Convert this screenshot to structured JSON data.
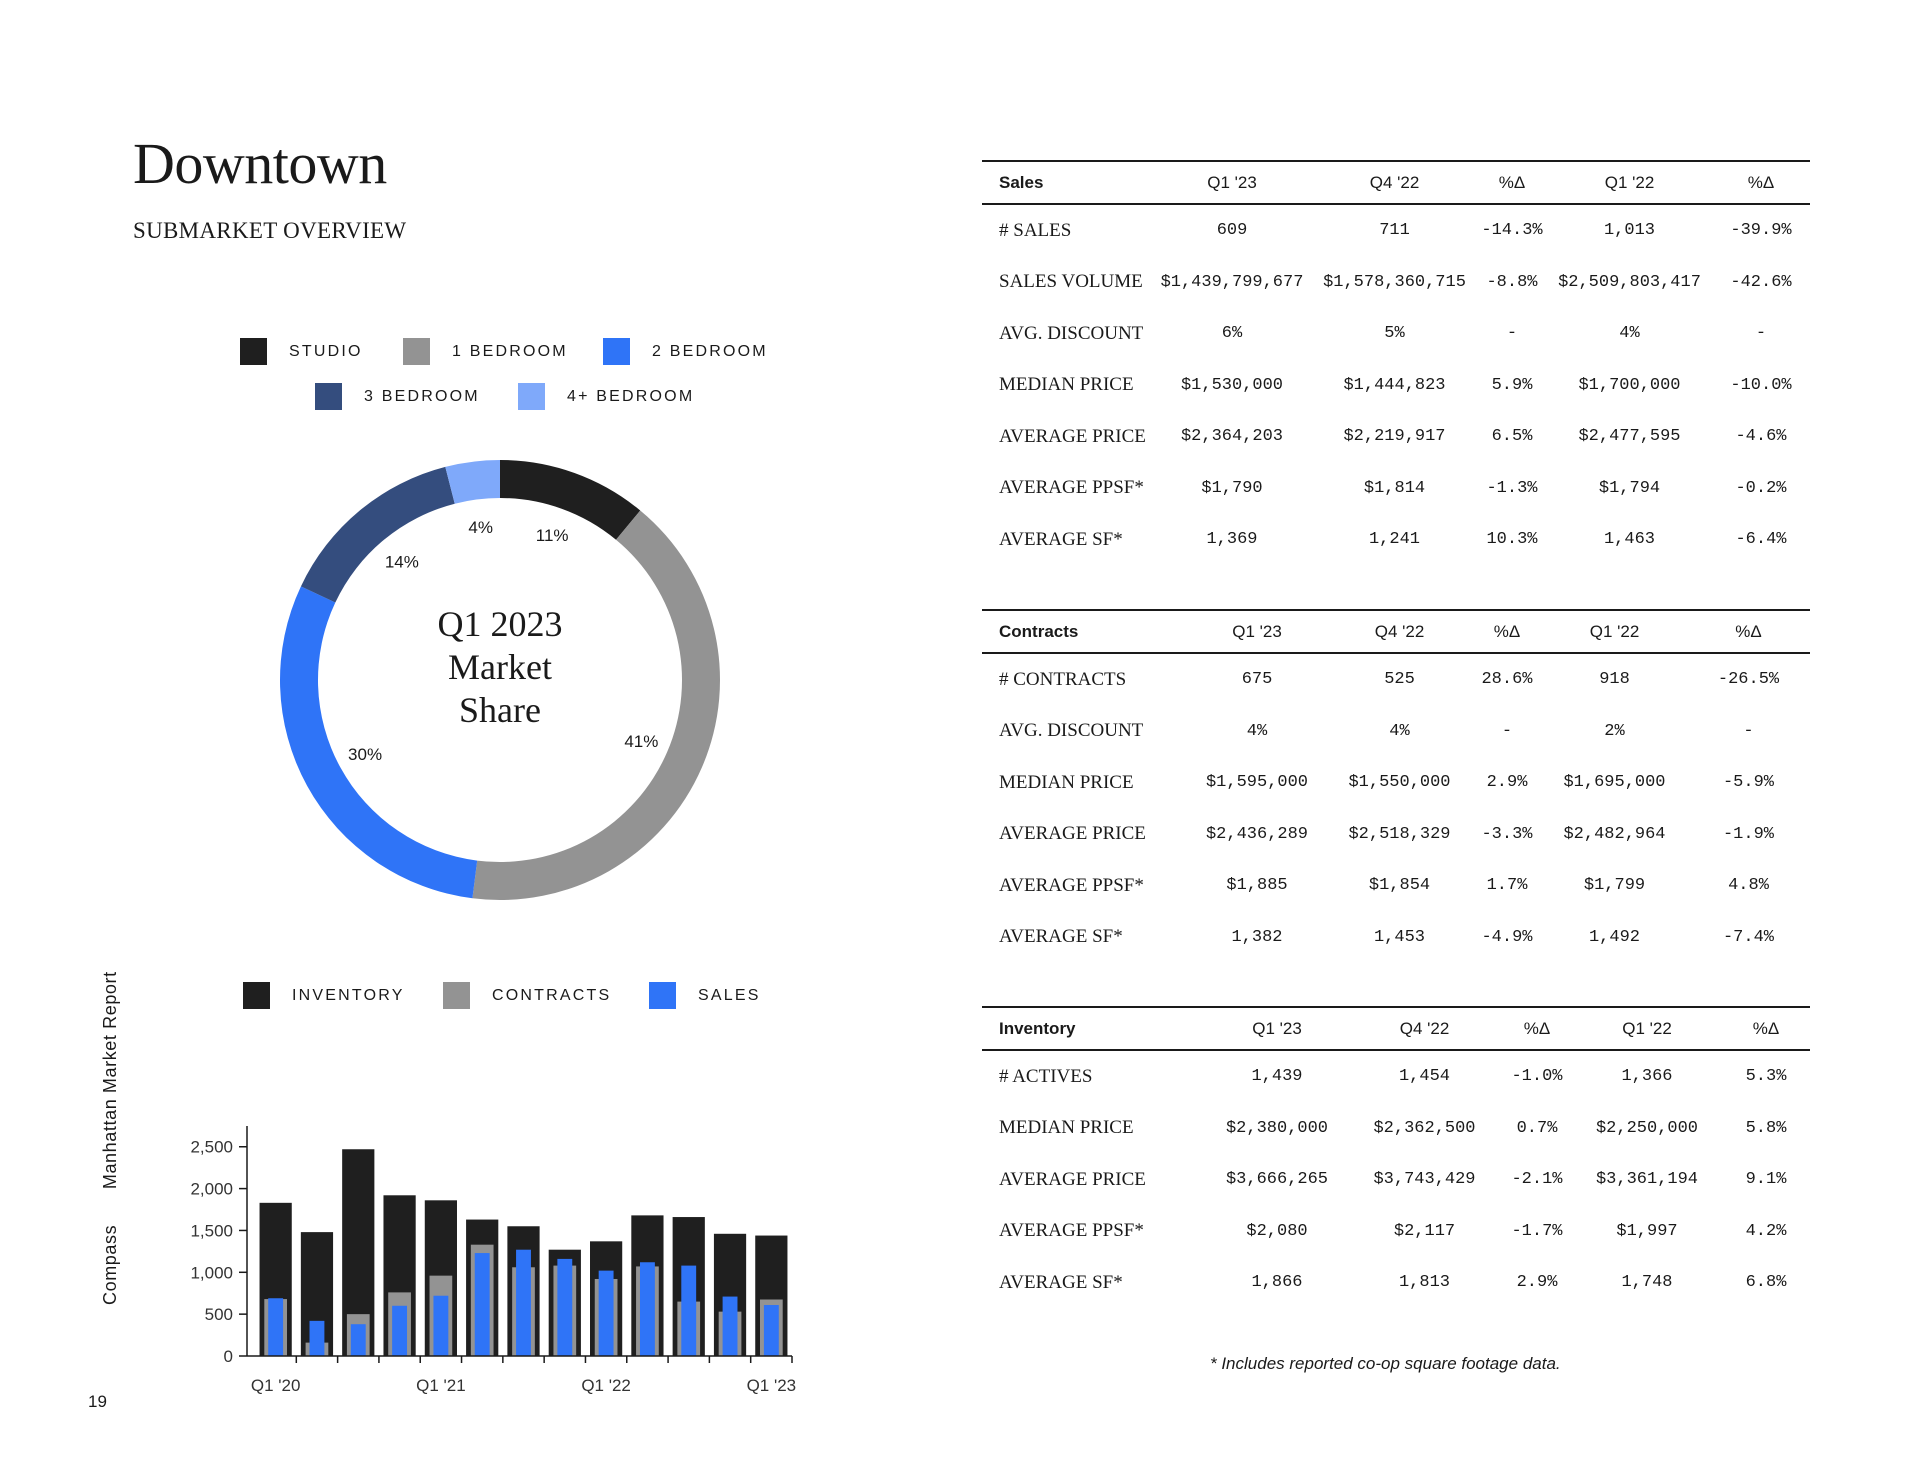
{
  "title": "Downtown",
  "subtitle": "SUBMARKET OVERVIEW",
  "side_text": {
    "brand": "Compass",
    "report": "Manhattan Market Report"
  },
  "page_number": "19",
  "colors": {
    "studio": "#1f1f1f",
    "one_bedroom": "#939393",
    "two_bedroom": "#2f74f7",
    "three_bedroom": "#344d7e",
    "four_plus_bedroom": "#7fa9fa",
    "inventory": "#1f1f1f",
    "contracts": "#939393",
    "sales": "#2f74f7"
  },
  "donut_legend": [
    "STUDIO",
    "1 BEDROOM",
    "2 BEDROOM",
    "3 BEDROOM",
    "4+ BEDROOM"
  ],
  "bar_legend": [
    "INVENTORY",
    "CONTRACTS",
    "SALES"
  ],
  "chart_data": [
    {
      "type": "pie",
      "style": "donut",
      "title_lines": [
        "Q1 2023",
        "Market",
        "Share"
      ],
      "categories": [
        "STUDIO",
        "1 BEDROOM",
        "2 BEDROOM",
        "3 BEDROOM",
        "4+ BEDROOM"
      ],
      "values": [
        11,
        41,
        30,
        14,
        4
      ],
      "labels": [
        "11%",
        "41%",
        "30%",
        "14%",
        "4%"
      ]
    },
    {
      "type": "bar",
      "categories": [
        "Q1 '20",
        "Q2 '20",
        "Q3 '20",
        "Q4 '20",
        "Q1 '21",
        "Q2 '21",
        "Q3 '21",
        "Q4 '21",
        "Q1 '22",
        "Q2 '22",
        "Q3 '22",
        "Q4 '22",
        "Q1 '23"
      ],
      "x_tick_labels": [
        "Q1 '20",
        "Q1 '21",
        "Q1 '22",
        "Q1 '23"
      ],
      "x_tick_indices": [
        0,
        4,
        8,
        12
      ],
      "y_ticks": [
        0,
        500,
        1000,
        1500,
        2000,
        2500
      ],
      "y_tick_labels": [
        "0",
        "500",
        "1,000",
        "1,500",
        "2,000",
        "2,500"
      ],
      "ylim": [
        0,
        2700
      ],
      "series": [
        {
          "name": "INVENTORY",
          "values": [
            1830,
            1480,
            2470,
            1920,
            1860,
            1630,
            1550,
            1270,
            1370,
            1680,
            1660,
            1460,
            1439
          ]
        },
        {
          "name": "CONTRACTS",
          "values": [
            680,
            160,
            500,
            760,
            960,
            1330,
            1060,
            1080,
            920,
            1070,
            650,
            530,
            675
          ]
        },
        {
          "name": "SALES",
          "values": [
            690,
            420,
            380,
            600,
            720,
            1230,
            1270,
            1160,
            1020,
            1120,
            1080,
            710,
            609
          ]
        }
      ]
    }
  ],
  "tables": {
    "sales": {
      "headers": [
        "Sales",
        "Q1 '23",
        "Q4 '22",
        "%Δ",
        "Q1 '22",
        "%Δ"
      ],
      "rows": [
        [
          "# SALES",
          "609",
          "711",
          "-14.3%",
          "1,013",
          "-39.9%"
        ],
        [
          "SALES VOLUME",
          "$1,439,799,677",
          "$1,578,360,715",
          "-8.8%",
          "$2,509,803,417",
          "-42.6%"
        ],
        [
          "AVG. DISCOUNT",
          "6%",
          "5%",
          "-",
          "4%",
          "-"
        ],
        [
          "MEDIAN PRICE",
          "$1,530,000",
          "$1,444,823",
          "5.9%",
          "$1,700,000",
          "-10.0%"
        ],
        [
          "AVERAGE PRICE",
          "$2,364,203",
          "$2,219,917",
          "6.5%",
          "$2,477,595",
          "-4.6%"
        ],
        [
          "AVERAGE PPSF*",
          "$1,790",
          "$1,814",
          "-1.3%",
          "$1,794",
          "-0.2%"
        ],
        [
          "AVERAGE SF*",
          "1,369",
          "1,241",
          "10.3%",
          "1,463",
          "-6.4%"
        ]
      ]
    },
    "contracts": {
      "headers": [
        "Contracts",
        "Q1 '23",
        "Q4 '22",
        "%Δ",
        "Q1 '22",
        "%Δ"
      ],
      "rows": [
        [
          "# CONTRACTS",
          "675",
          "525",
          "28.6%",
          "918",
          "-26.5%"
        ],
        [
          "AVG. DISCOUNT",
          "4%",
          "4%",
          "-",
          "2%",
          "-"
        ],
        [
          "MEDIAN PRICE",
          "$1,595,000",
          "$1,550,000",
          "2.9%",
          "$1,695,000",
          "-5.9%"
        ],
        [
          "AVERAGE PRICE",
          "$2,436,289",
          "$2,518,329",
          "-3.3%",
          "$2,482,964",
          "-1.9%"
        ],
        [
          "AVERAGE PPSF*",
          "$1,885",
          "$1,854",
          "1.7%",
          "$1,799",
          "4.8%"
        ],
        [
          "AVERAGE SF*",
          "1,382",
          "1,453",
          "-4.9%",
          "1,492",
          "-7.4%"
        ]
      ]
    },
    "inventory": {
      "headers": [
        "Inventory",
        "Q1 '23",
        "Q4 '22",
        "%Δ",
        "Q1 '22",
        "%Δ"
      ],
      "rows": [
        [
          "# ACTIVES",
          "1,439",
          "1,454",
          "-1.0%",
          "1,366",
          "5.3%"
        ],
        [
          "MEDIAN PRICE",
          "$2,380,000",
          "$2,362,500",
          "0.7%",
          "$2,250,000",
          "5.8%"
        ],
        [
          "AVERAGE PRICE",
          "$3,666,265",
          "$3,743,429",
          "-2.1%",
          "$3,361,194",
          "9.1%"
        ],
        [
          "AVERAGE PPSF*",
          "$2,080",
          "$2,117",
          "-1.7%",
          "$1,997",
          "4.2%"
        ],
        [
          "AVERAGE SF*",
          "1,866",
          "1,813",
          "2.9%",
          "1,748",
          "6.8%"
        ]
      ]
    }
  },
  "footnote": "* Includes reported co-op square footage data."
}
